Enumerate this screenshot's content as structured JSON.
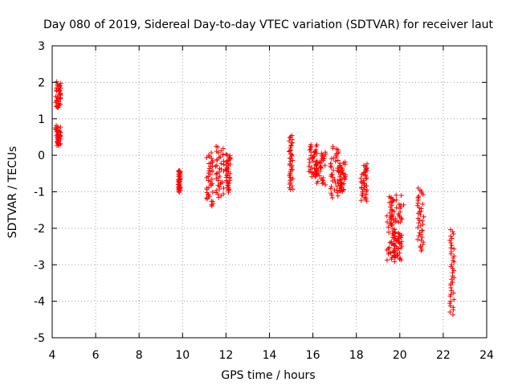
{
  "chart_data": {
    "type": "scatter",
    "title": "Day 080 of 2019, Sidereal Day-to-day VTEC variation (SDTVAR) for receiver laut",
    "xlabel": "GPS time / hours",
    "ylabel": "SDTVAR / TECUs",
    "xlim": [
      4,
      24
    ],
    "ylim": [
      -5,
      3
    ],
    "x_ticks": [
      4,
      6,
      8,
      10,
      12,
      14,
      16,
      18,
      20,
      22,
      24
    ],
    "y_ticks": [
      -5,
      -4,
      -3,
      -2,
      -1,
      0,
      1,
      2,
      3
    ],
    "grid": true,
    "legend": "none",
    "marker": "plus",
    "color": "#ff0000",
    "clusters": [
      {
        "x_range": [
          4.15,
          4.4
        ],
        "y_range": [
          1.3,
          2.0
        ]
      },
      {
        "x_range": [
          4.15,
          4.4
        ],
        "y_range": [
          0.25,
          0.8
        ]
      },
      {
        "x_range": [
          9.8,
          9.9
        ],
        "y_range": [
          -1.0,
          -0.4
        ]
      },
      {
        "x_range": [
          11.1,
          11.4
        ],
        "y_range": [
          -1.4,
          0.05
        ]
      },
      {
        "x_range": [
          11.5,
          11.9
        ],
        "y_range": [
          -1.15,
          0.25
        ]
      },
      {
        "x_range": [
          12.0,
          12.2
        ],
        "y_range": [
          -1.0,
          0.05
        ]
      },
      {
        "x_range": [
          14.9,
          15.1
        ],
        "y_range": [
          -0.95,
          0.55
        ]
      },
      {
        "x_range": [
          15.8,
          16.2
        ],
        "y_range": [
          -0.6,
          0.3
        ]
      },
      {
        "x_range": [
          16.1,
          16.6
        ],
        "y_range": [
          -0.8,
          0.1
        ]
      },
      {
        "x_range": [
          16.8,
          17.2
        ],
        "y_range": [
          -1.15,
          0.25
        ]
      },
      {
        "x_range": [
          17.2,
          17.5
        ],
        "y_range": [
          -1.0,
          -0.2
        ]
      },
      {
        "x_range": [
          18.2,
          18.5
        ],
        "y_range": [
          -1.25,
          -0.25
        ]
      },
      {
        "x_range": [
          19.4,
          19.8
        ],
        "y_range": [
          -2.9,
          -1.65
        ]
      },
      {
        "x_range": [
          19.5,
          20.2
        ],
        "y_range": [
          -1.9,
          -1.1
        ]
      },
      {
        "x_range": [
          19.7,
          20.1
        ],
        "y_range": [
          -2.85,
          -2.1
        ]
      },
      {
        "x_range": [
          20.8,
          21.1
        ],
        "y_range": [
          -2.6,
          -0.9
        ]
      },
      {
        "x_range": [
          22.3,
          22.5
        ],
        "y_range": [
          -4.35,
          -2.05
        ]
      }
    ]
  }
}
